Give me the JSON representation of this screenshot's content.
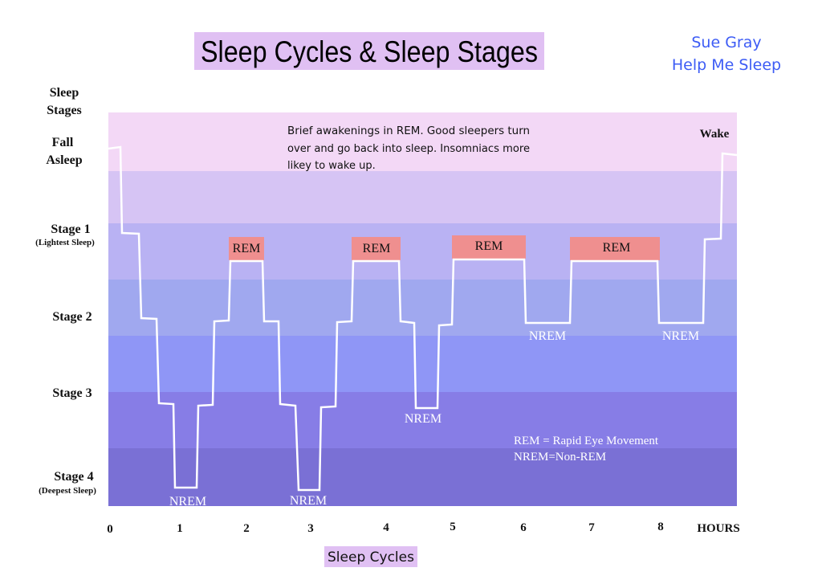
{
  "title": "Sleep Cycles & Sleep Stages",
  "author": {
    "name": "Sue Gray",
    "brand": "Help Me Sleep"
  },
  "y_axis_title": [
    "Sleep",
    "Stages"
  ],
  "stages": {
    "fall_asleep": [
      "Fall",
      "Asleep"
    ],
    "stage1": "Stage 1",
    "stage1_note": "(Lightest Sleep)",
    "stage2": "Stage 2",
    "stage3": "Stage 3",
    "stage4": "Stage 4",
    "stage4_note": "(Deepest Sleep)",
    "wake": "Wake"
  },
  "annotation": [
    "Brief awakenings in REM.  Good sleepers turn",
    "over and go back into sleep. Insomniacs more",
    "likey to wake up."
  ],
  "rem_label": "REM",
  "nrem_label": "NREM",
  "legend": [
    "REM = Rapid Eye Movement",
    "NREM=Non-REM"
  ],
  "hours": [
    "0",
    "1",
    "2",
    "3",
    "4",
    "5",
    "6",
    "7",
    "8"
  ],
  "hours_label": "HOURS",
  "x_axis_title": "Sleep Cycles",
  "colors": {
    "title_bg": "#e0c0f3",
    "author": "#3d5cf5",
    "rem_box": "#ef8f8f",
    "bands": [
      "#f3d8f6",
      "#d6c4f4",
      "#b9b2f3",
      "#a0a8ef",
      "#8f96f6",
      "#877de6",
      "#7a70d5"
    ]
  }
}
